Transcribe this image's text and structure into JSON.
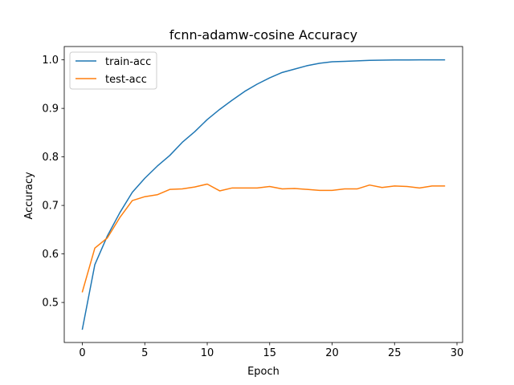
{
  "chart_data": {
    "type": "line",
    "title": "fcnn-adamw-cosine Accuracy",
    "xlabel": "Epoch",
    "ylabel": "Accuracy",
    "xlim": [
      -1.45,
      30.45
    ],
    "ylim": [
      0.4175,
      1.0275
    ],
    "xticks": [
      0,
      5,
      10,
      15,
      20,
      25,
      30
    ],
    "yticks": [
      0.5,
      0.6,
      0.7,
      0.8,
      0.9,
      1.0
    ],
    "ytick_labels": [
      "0.5",
      "0.6",
      "0.7",
      "0.8",
      "0.9",
      "1.0"
    ],
    "grid": false,
    "legend_position": "top-left",
    "x": [
      0,
      1,
      2,
      3,
      4,
      5,
      6,
      7,
      8,
      9,
      10,
      11,
      12,
      13,
      14,
      15,
      16,
      17,
      18,
      19,
      20,
      21,
      22,
      23,
      24,
      25,
      26,
      27,
      28,
      29
    ],
    "series": [
      {
        "name": "train-acc",
        "color": "#1f77b4",
        "values": [
          0.445,
          0.578,
          0.637,
          0.685,
          0.727,
          0.756,
          0.781,
          0.803,
          0.83,
          0.852,
          0.877,
          0.898,
          0.917,
          0.935,
          0.95,
          0.963,
          0.974,
          0.981,
          0.988,
          0.993,
          0.996,
          0.997,
          0.998,
          0.999,
          0.9995,
          0.9998,
          0.9999,
          1.0,
          1.0,
          1.0
        ]
      },
      {
        "name": "test-acc",
        "color": "#ff7f0e",
        "values": [
          0.522,
          0.612,
          0.633,
          0.675,
          0.71,
          0.718,
          0.722,
          0.733,
          0.734,
          0.738,
          0.744,
          0.73,
          0.736,
          0.736,
          0.736,
          0.739,
          0.734,
          0.735,
          0.733,
          0.731,
          0.731,
          0.734,
          0.734,
          0.742,
          0.737,
          0.74,
          0.739,
          0.736,
          0.74,
          0.74
        ]
      }
    ]
  }
}
